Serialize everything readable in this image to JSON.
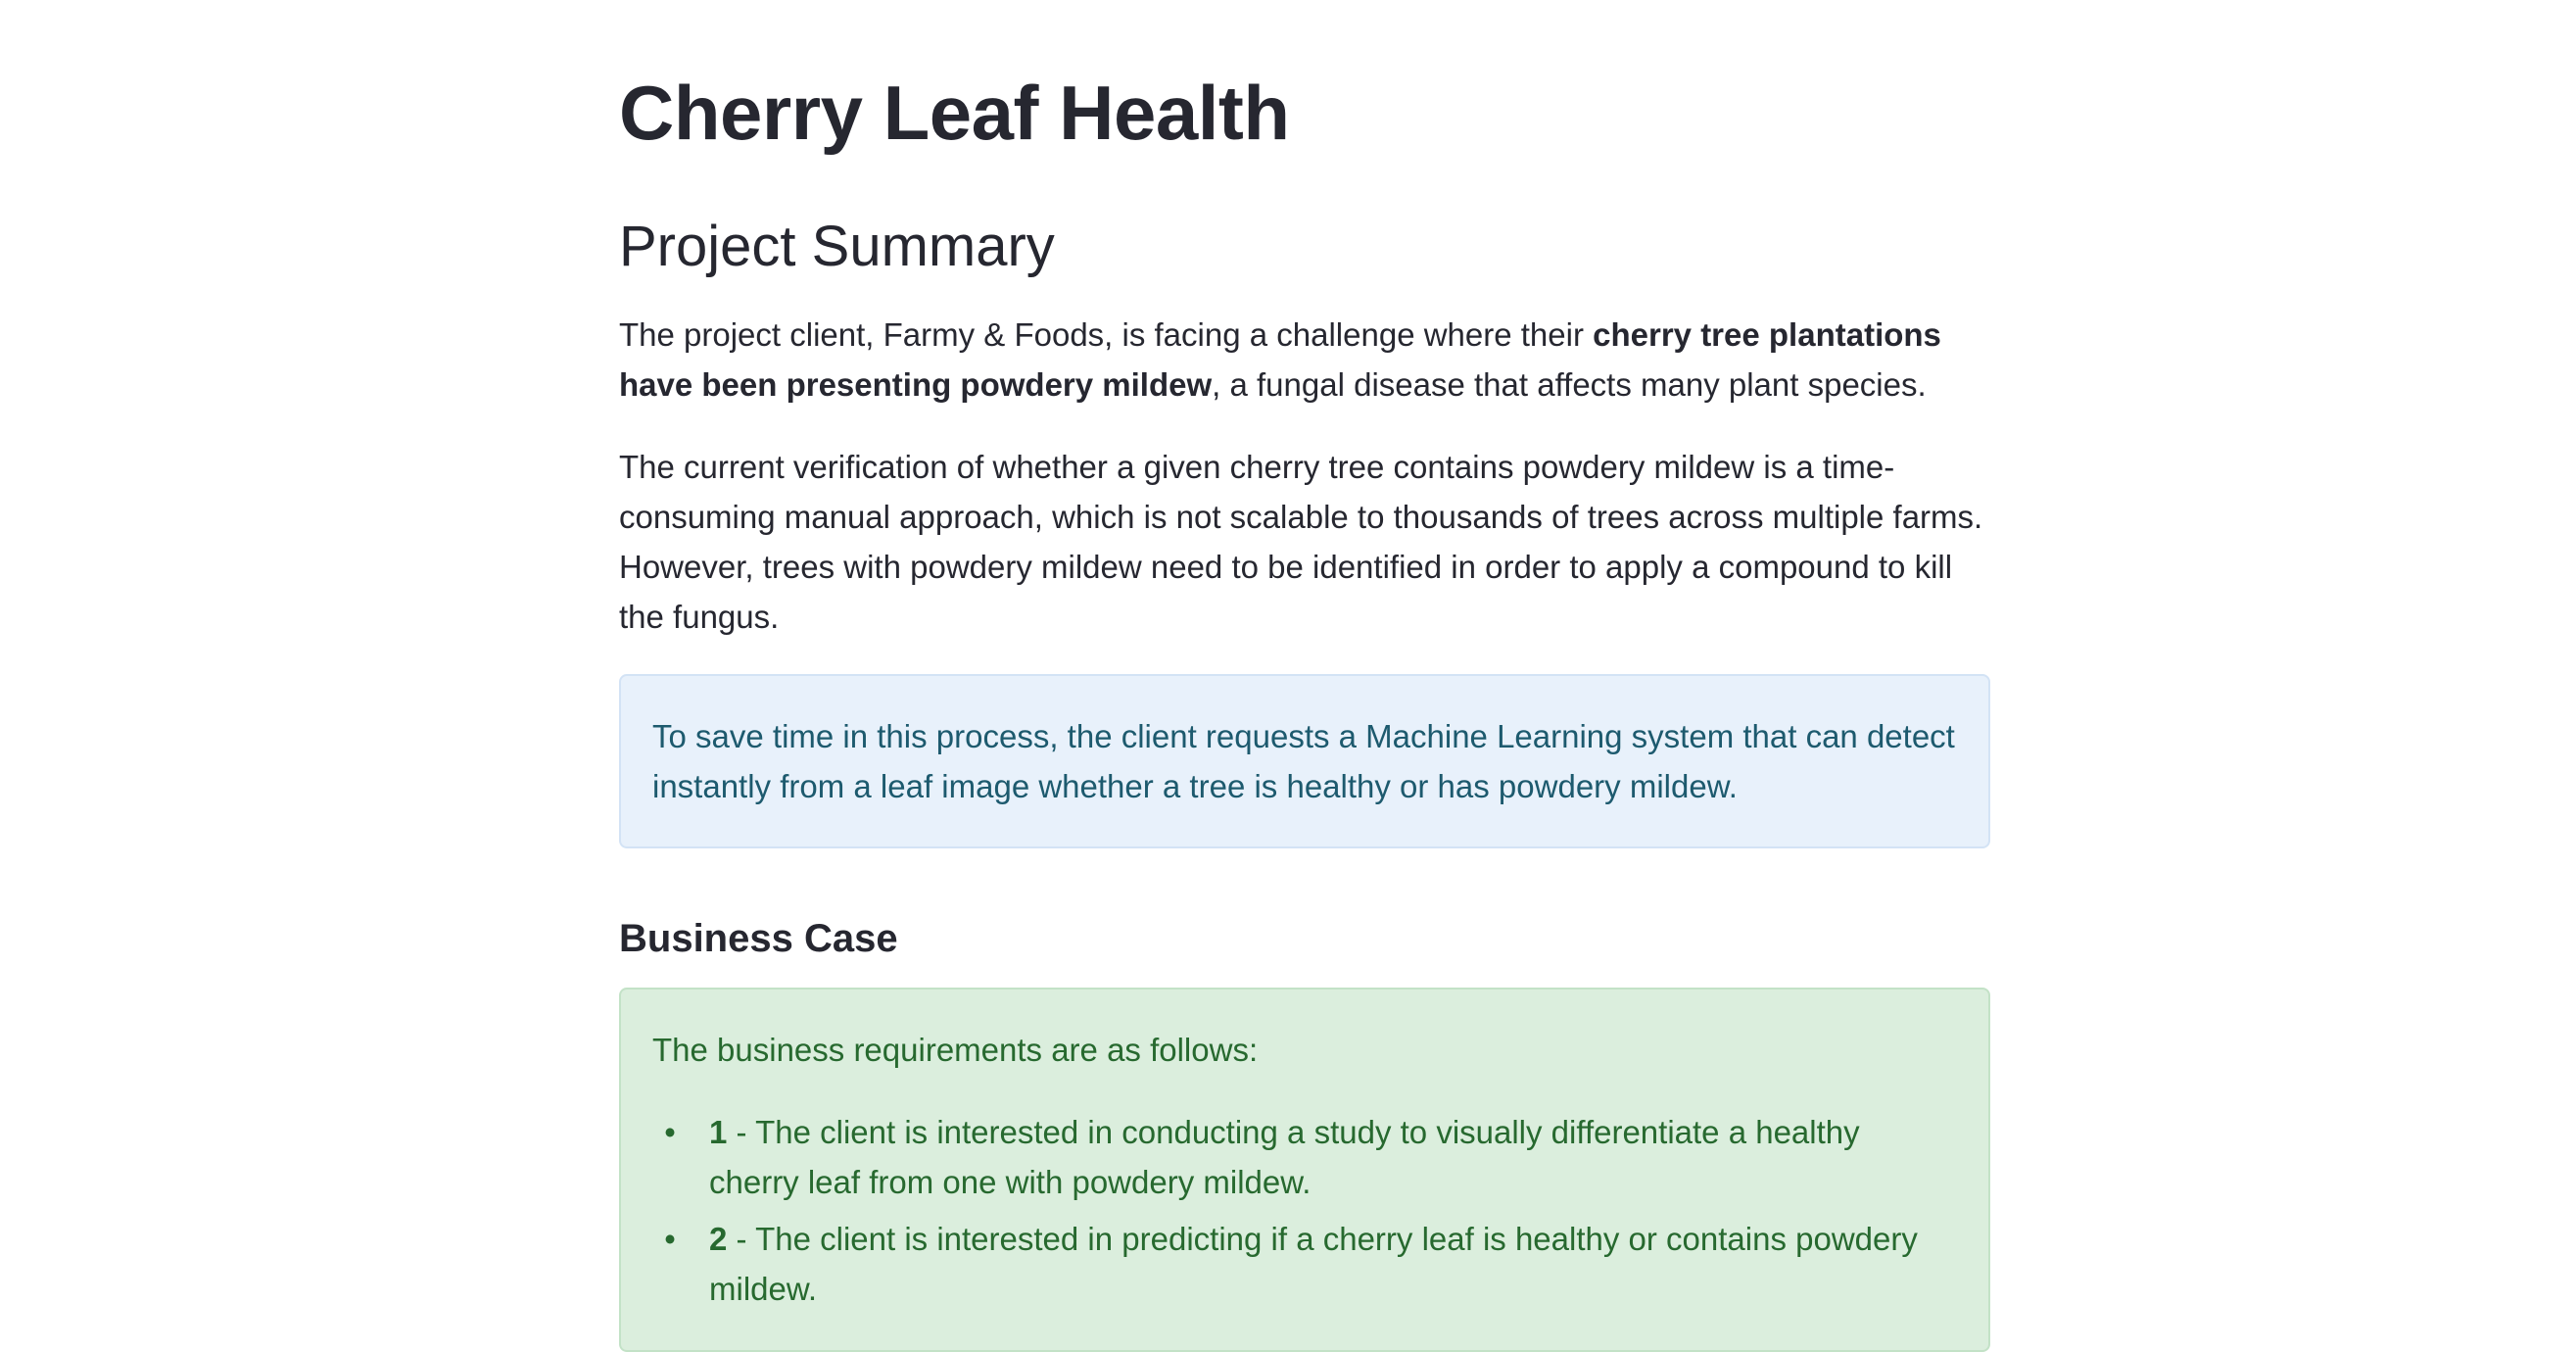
{
  "app": {
    "title": "Cherry Leaf Health"
  },
  "project_summary": {
    "heading": "Project Summary",
    "para1": {
      "before": "The project client, Farmy & Foods, is facing a challenge where their ",
      "bold": "cherry tree plantations have been presenting powdery mildew",
      "after": ", a fungal disease that affects many plant species."
    },
    "para2": "The current verification of whether a given cherry tree contains powdery mildew is a time-consuming manual approach, which is not scalable to thousands of trees across multiple farms. However, trees with powdery mildew need to be identified in order to apply a compound to kill the fungus.",
    "info_text": "To save time in this process, the client requests a Machine Learning system that can detect instantly from a leaf image whether a tree is healthy or has powdery mildew."
  },
  "business_case": {
    "heading": "Business Case",
    "intro": "The business requirements are as follows:",
    "requirements": [
      {
        "number": "1",
        "text": " - The client is interested in conducting a study to visually differentiate a healthy cherry leaf from one with powdery mildew."
      },
      {
        "number": "2",
        "text": " - The client is interested in predicting if a cherry leaf is healthy or contains powdery mildew."
      }
    ]
  },
  "colors": {
    "info_background": "#e8f1fb",
    "info_text": "#1d5a6e",
    "success_background": "#dbeedd",
    "success_text": "#27692f",
    "heading_text": "#262730"
  }
}
